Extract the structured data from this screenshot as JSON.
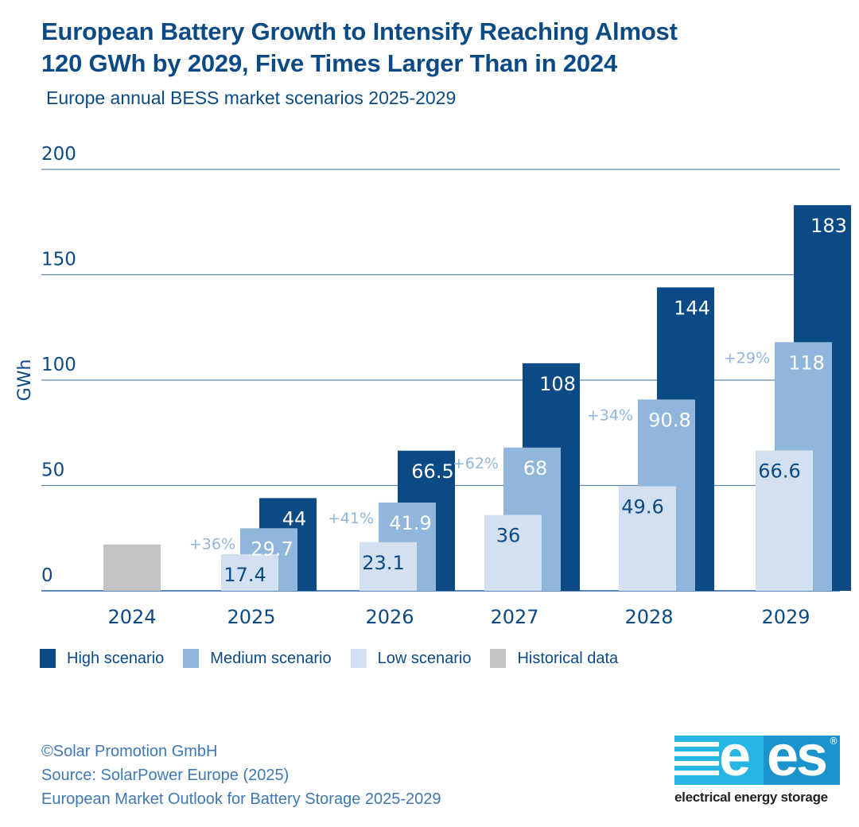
{
  "header": {
    "title_line1": "European Battery Growth to Intensify Reaching Almost",
    "title_line2": "120 GWh by 2029, Five Times Larger Than in 2024",
    "subtitle": "Europe annual BESS market scenarios 2025-2029"
  },
  "colors": {
    "high": "#0b4a85",
    "medium": "#91b6dc",
    "low": "#d3e0ef",
    "historical": "#c4c4c4",
    "text": "#0b4a85",
    "growth_label": "#91b6dc",
    "gridline": "#5d87b5"
  },
  "chart_data": {
    "type": "bar",
    "title": "European Battery Growth to Intensify Reaching Almost 120 GWh by 2029, Five Times Larger Than in 2024",
    "subtitle": "Europe annual BESS market scenarios 2025-2029",
    "xlabel": "",
    "ylabel": "GWh",
    "ylim": [
      0,
      200
    ],
    "yticks": [
      "0",
      "50",
      "100",
      "150",
      "200"
    ],
    "grid": true,
    "legend_position": "bottom-left",
    "categories": [
      "2024",
      "2025",
      "2026",
      "2027",
      "2028",
      "2029"
    ],
    "series": [
      {
        "name": "Historical data",
        "key": "historical",
        "values": [
          22,
          null,
          null,
          null,
          null,
          null
        ],
        "labels": [
          null,
          null,
          null,
          null,
          null,
          null
        ]
      },
      {
        "name": "Low scenario",
        "key": "low",
        "values": [
          null,
          17.4,
          23.1,
          36,
          49.6,
          66.6
        ],
        "labels": [
          null,
          "17.4",
          "23.1",
          "36",
          "49.6",
          "66.6"
        ]
      },
      {
        "name": "Medium scenario",
        "key": "medium",
        "values": [
          null,
          29.7,
          41.9,
          68,
          90.8,
          118
        ],
        "labels": [
          null,
          "29.7",
          "41.9",
          "68",
          "90.8",
          "118"
        ]
      },
      {
        "name": "High scenario",
        "key": "high",
        "values": [
          null,
          44,
          66.5,
          108,
          144,
          183
        ],
        "labels": [
          null,
          "44",
          "66.5",
          "108",
          "144",
          "183"
        ]
      }
    ],
    "growth_annotations": [
      null,
      "+36%",
      "+41%",
      "+62%",
      "+34%",
      "+29%"
    ],
    "legend": [
      {
        "label": "High scenario",
        "key": "high"
      },
      {
        "label": "Medium scenario",
        "key": "medium"
      },
      {
        "label": "Low scenario",
        "key": "low"
      },
      {
        "label": "Historical data",
        "key": "historical"
      }
    ]
  },
  "footer": {
    "copyright": "©Solar Promotion GmbH",
    "source": "Source: SolarPower Europe (2025)",
    "report": "European Market Outlook for Battery Storage 2025-2029"
  },
  "logo": {
    "mark": "ees",
    "registered": "®",
    "tagline": "electrical energy storage"
  }
}
